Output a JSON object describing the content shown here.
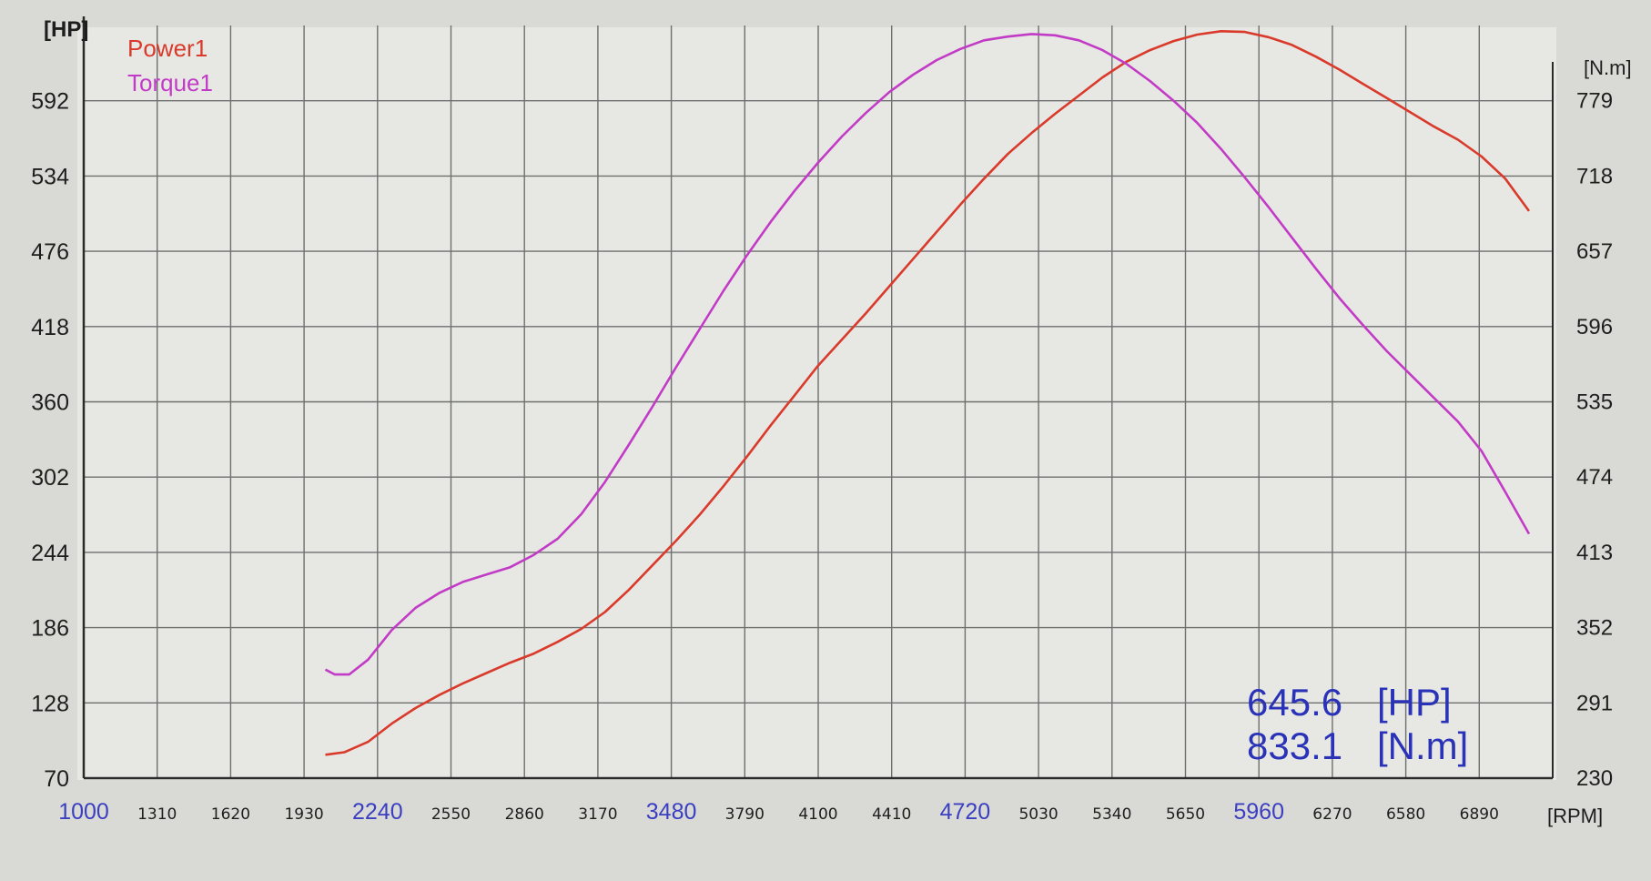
{
  "chart_data": {
    "type": "line",
    "xunit": "[RPM]",
    "y_left_unit": "[HP]",
    "y_right_unit": "[N.m]",
    "x_ticks": [
      1000,
      1310,
      1620,
      1930,
      2240,
      2550,
      2860,
      3170,
      3480,
      3790,
      4100,
      4410,
      4720,
      5030,
      5340,
      5650,
      5960,
      6270,
      6580,
      6890
    ],
    "x_highlight_ticks": [
      1000,
      2240,
      3480,
      4720,
      5960
    ],
    "x_range": [
      1000,
      7200
    ],
    "y_left_ticks": [
      70,
      128,
      186,
      244,
      302,
      360,
      418,
      476,
      534,
      592
    ],
    "y_left_range": [
      70,
      650
    ],
    "y_right_ticks": [
      230,
      291,
      352,
      413,
      474,
      535,
      596,
      657,
      718,
      779
    ],
    "y_right_range": [
      230,
      840
    ],
    "grid": true,
    "legend": [
      "Power1",
      "Torque1"
    ],
    "legend_placement": "top-left",
    "series": [
      {
        "name": "Power1",
        "axis": "left",
        "color": "#d93a2b",
        "points": [
          [
            2020,
            88
          ],
          [
            2100,
            90
          ],
          [
            2200,
            98
          ],
          [
            2300,
            112
          ],
          [
            2400,
            124
          ],
          [
            2500,
            134
          ],
          [
            2600,
            143
          ],
          [
            2700,
            151
          ],
          [
            2800,
            159
          ],
          [
            2900,
            166
          ],
          [
            3000,
            175
          ],
          [
            3100,
            185
          ],
          [
            3200,
            198
          ],
          [
            3300,
            215
          ],
          [
            3400,
            234
          ],
          [
            3500,
            253
          ],
          [
            3600,
            273
          ],
          [
            3700,
            295
          ],
          [
            3800,
            318
          ],
          [
            3900,
            342
          ],
          [
            4000,
            365
          ],
          [
            4100,
            388
          ],
          [
            4200,
            408
          ],
          [
            4300,
            428
          ],
          [
            4400,
            449
          ],
          [
            4500,
            470
          ],
          [
            4600,
            491
          ],
          [
            4700,
            512
          ],
          [
            4800,
            532
          ],
          [
            4900,
            551
          ],
          [
            5000,
            567
          ],
          [
            5100,
            582
          ],
          [
            5200,
            596
          ],
          [
            5300,
            610
          ],
          [
            5400,
            622
          ],
          [
            5500,
            631
          ],
          [
            5600,
            638
          ],
          [
            5700,
            643
          ],
          [
            5800,
            645.6
          ],
          [
            5900,
            645
          ],
          [
            6000,
            641
          ],
          [
            6100,
            635
          ],
          [
            6200,
            626
          ],
          [
            6300,
            616
          ],
          [
            6400,
            605
          ],
          [
            6500,
            594
          ],
          [
            6600,
            583
          ],
          [
            6700,
            572
          ],
          [
            6800,
            562
          ],
          [
            6900,
            549
          ],
          [
            7000,
            532
          ],
          [
            7100,
            507
          ]
        ]
      },
      {
        "name": "Torque1",
        "axis": "right",
        "color": "#c23bc6",
        "points": [
          [
            2020,
            318
          ],
          [
            2060,
            314
          ],
          [
            2120,
            314
          ],
          [
            2200,
            326
          ],
          [
            2300,
            350
          ],
          [
            2400,
            368
          ],
          [
            2500,
            380
          ],
          [
            2600,
            389
          ],
          [
            2700,
            395
          ],
          [
            2800,
            401
          ],
          [
            2900,
            411
          ],
          [
            3000,
            424
          ],
          [
            3100,
            444
          ],
          [
            3200,
            470
          ],
          [
            3300,
            500
          ],
          [
            3400,
            531
          ],
          [
            3500,
            563
          ],
          [
            3600,
            594
          ],
          [
            3700,
            625
          ],
          [
            3800,
            654
          ],
          [
            3900,
            681
          ],
          [
            4000,
            706
          ],
          [
            4100,
            729
          ],
          [
            4200,
            750
          ],
          [
            4300,
            769
          ],
          [
            4400,
            786
          ],
          [
            4500,
            800
          ],
          [
            4600,
            812
          ],
          [
            4700,
            821
          ],
          [
            4800,
            828
          ],
          [
            4900,
            831
          ],
          [
            5000,
            833.1
          ],
          [
            5100,
            832
          ],
          [
            5200,
            828
          ],
          [
            5300,
            820
          ],
          [
            5400,
            809
          ],
          [
            5500,
            795
          ],
          [
            5600,
            779
          ],
          [
            5700,
            761
          ],
          [
            5800,
            740
          ],
          [
            5900,
            717
          ],
          [
            6000,
            693
          ],
          [
            6100,
            668
          ],
          [
            6200,
            643
          ],
          [
            6300,
            619
          ],
          [
            6400,
            597
          ],
          [
            6500,
            576
          ],
          [
            6600,
            557
          ],
          [
            6700,
            538
          ],
          [
            6800,
            519
          ],
          [
            6900,
            495
          ],
          [
            7000,
            462
          ],
          [
            7100,
            428
          ]
        ]
      }
    ],
    "annotations": {
      "peak_power_value": "645.6",
      "peak_power_unit": "[HP]",
      "peak_torque_value": "833.1",
      "peak_torque_unit": "[N.m]"
    },
    "colors": {
      "background": "#d9d9d6",
      "plot_bg": "#e7e8e3",
      "grid": "#6f6f6f",
      "power": "#d93a2b",
      "torque": "#c23bc6",
      "highlight_tick": "#3a3fc2",
      "annotation": "#2a33b8"
    }
  }
}
